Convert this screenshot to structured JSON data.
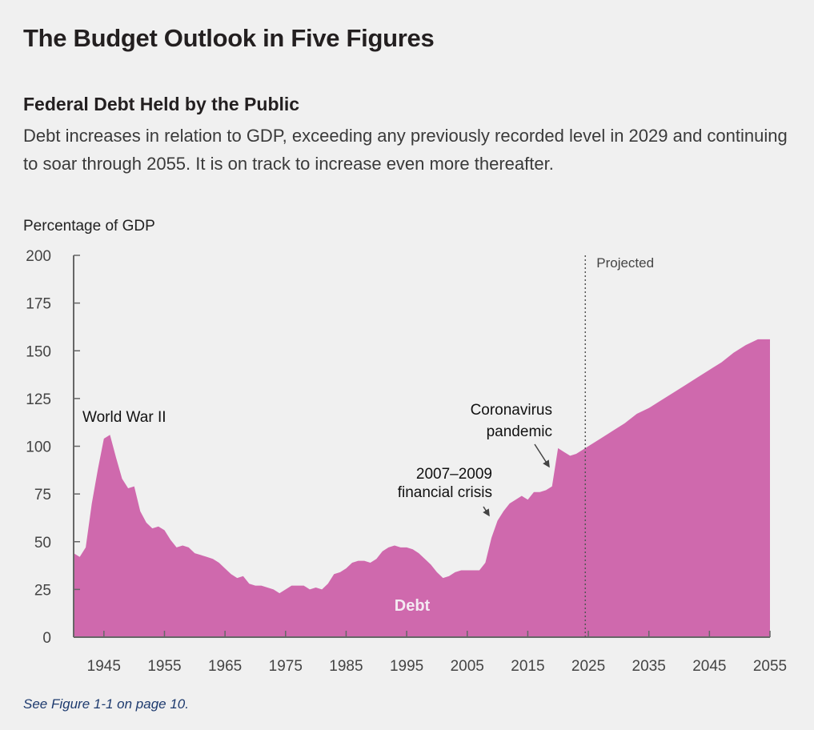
{
  "page": {
    "title": "The Budget Outlook in Five Figures",
    "figure_title": "Federal Debt Held by the Public",
    "figure_description": "Debt increases in relation to GDP, exceeding any previously recorded level in 2029 and continuing to soar through 2055. It is on track to increase even more thereafter.",
    "note": "See Figure 1-1 on page 10."
  },
  "colors": {
    "area_fill": "#cf69ad",
    "axis": "#666666",
    "note_text": "#1d3a6e"
  },
  "chart_data": {
    "type": "area",
    "title": "Federal Debt Held by the Public",
    "ylabel": "Percentage of GDP",
    "xlabel": "",
    "xlim": [
      1940,
      2055
    ],
    "ylim": [
      0,
      200
    ],
    "yticks": [
      0,
      25,
      50,
      75,
      100,
      125,
      150,
      175,
      200
    ],
    "xticks": [
      1945,
      1955,
      1965,
      1975,
      1985,
      1995,
      2005,
      2015,
      2025,
      2035,
      2045,
      2055
    ],
    "grid": false,
    "projection_start_year": 2024.5,
    "projection_label": "Projected",
    "series": [
      {
        "name": "Debt",
        "x": [
          1940,
          1941,
          1942,
          1943,
          1944,
          1945,
          1946,
          1947,
          1948,
          1949,
          1950,
          1951,
          1952,
          1953,
          1954,
          1955,
          1956,
          1957,
          1958,
          1959,
          1960,
          1961,
          1962,
          1963,
          1964,
          1965,
          1966,
          1967,
          1968,
          1969,
          1970,
          1971,
          1972,
          1973,
          1974,
          1975,
          1976,
          1977,
          1978,
          1979,
          1980,
          1981,
          1982,
          1983,
          1984,
          1985,
          1986,
          1987,
          1988,
          1989,
          1990,
          1991,
          1992,
          1993,
          1994,
          1995,
          1996,
          1997,
          1998,
          1999,
          2000,
          2001,
          2002,
          2003,
          2004,
          2005,
          2006,
          2007,
          2008,
          2009,
          2010,
          2011,
          2012,
          2013,
          2014,
          2015,
          2016,
          2017,
          2018,
          2019,
          2020,
          2021,
          2022,
          2023,
          2024,
          2025,
          2027,
          2029,
          2031,
          2033,
          2035,
          2037,
          2039,
          2041,
          2043,
          2045,
          2047,
          2049,
          2051,
          2053,
          2055
        ],
        "values": [
          44,
          42,
          47,
          70,
          88,
          104,
          106,
          94,
          83,
          78,
          79,
          66,
          60,
          57,
          58,
          56,
          51,
          47,
          48,
          47,
          44,
          43,
          42,
          41,
          39,
          36,
          33,
          31,
          32,
          28,
          27,
          27,
          26,
          25,
          23,
          25,
          27,
          27,
          27,
          25,
          26,
          25,
          28,
          33,
          34,
          36,
          39,
          40,
          40,
          39,
          41,
          45,
          47,
          48,
          47,
          47,
          46,
          44,
          41,
          38,
          34,
          31,
          32,
          34,
          35,
          35,
          35,
          35,
          39,
          52,
          61,
          66,
          70,
          72,
          74,
          72,
          76,
          76,
          77,
          79,
          99,
          97,
          95,
          96,
          98,
          100,
          104,
          108,
          112,
          117,
          120,
          124,
          128,
          132,
          136,
          140,
          144,
          149,
          153,
          156,
          156
        ]
      }
    ],
    "annotations": [
      {
        "text": "World War II",
        "x": 1946,
        "y": 116
      },
      {
        "text": "2007–2009",
        "x": 2007,
        "y": 84
      },
      {
        "text": "financial crisis",
        "x": 2007,
        "y": 76
      },
      {
        "text": "Coronavirus",
        "x": 2018,
        "y": 119
      },
      {
        "text": "pandemic",
        "x": 2018,
        "y": 109
      }
    ],
    "series_label": "Debt"
  }
}
